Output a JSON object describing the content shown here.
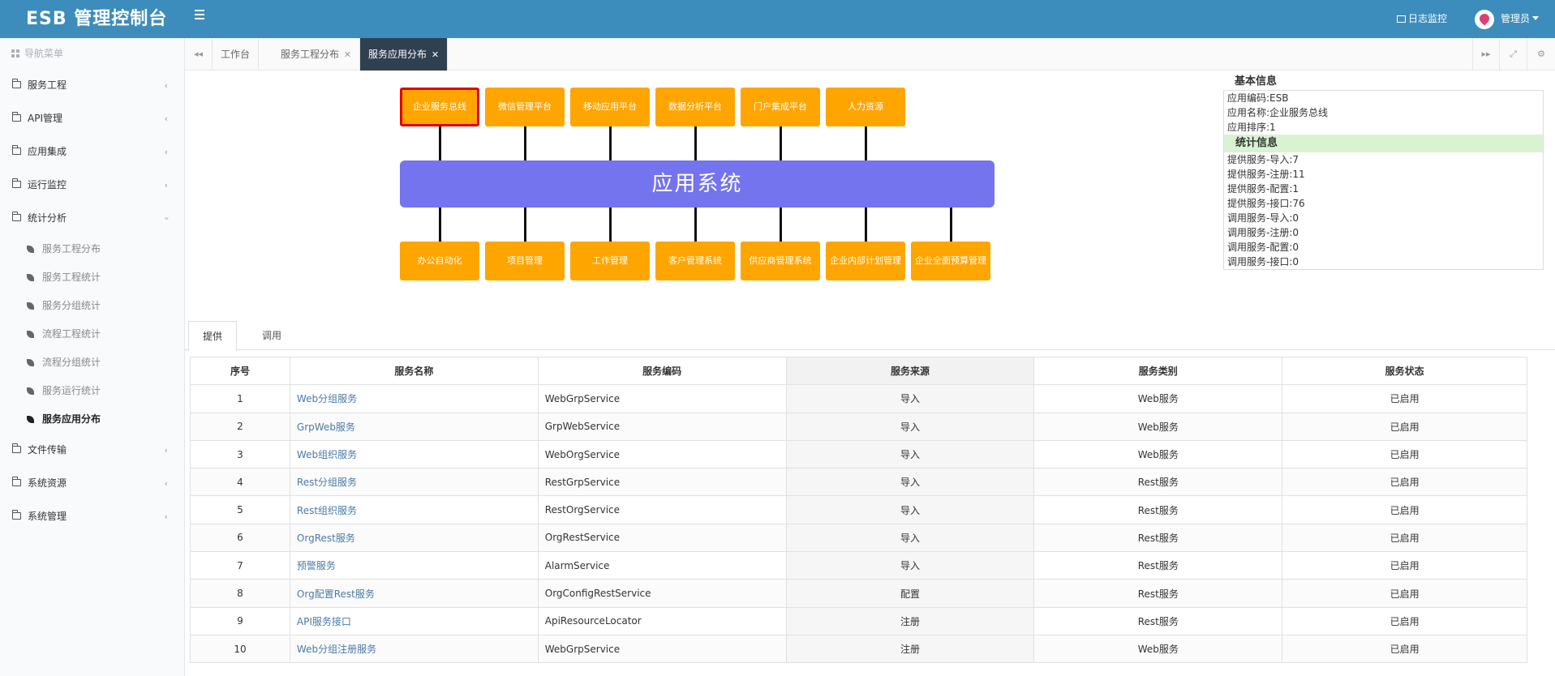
{
  "header": {
    "title": "ESB 管理控制台",
    "log_monitor": "日志监控",
    "user": "管理员"
  },
  "sidebar": {
    "nav_header": "导航菜单",
    "items": [
      {
        "label": "服务工程"
      },
      {
        "label": "API管理"
      },
      {
        "label": "应用集成"
      },
      {
        "label": "运行监控"
      },
      {
        "label": "统计分析"
      }
    ],
    "sub_items": [
      {
        "label": "服务工程分布"
      },
      {
        "label": "服务工程统计"
      },
      {
        "label": "服务分组统计"
      },
      {
        "label": "流程工程统计"
      },
      {
        "label": "流程分组统计"
      },
      {
        "label": "服务运行统计"
      },
      {
        "label": "服务应用分布"
      }
    ],
    "items_after": [
      {
        "label": "文件传输"
      },
      {
        "label": "系统资源"
      },
      {
        "label": "系统管理"
      }
    ]
  },
  "tabs": [
    {
      "label": "工作台"
    },
    {
      "label": "服务工程分布"
    },
    {
      "label": "服务应用分布"
    }
  ],
  "diagram": {
    "center_label": "应用系统",
    "top_nodes": [
      "企业服务总线",
      "微信管理平台",
      "移动应用平台",
      "数据分析平台",
      "门户集成平台",
      "人力资源"
    ],
    "bottom_nodes": [
      "办公自动化",
      "项目管理",
      "工作管理",
      "客户管理系统",
      "供应商管理系统",
      "企业内部计划管理",
      "企业全面预算管理"
    ]
  },
  "info": {
    "basic_title": "基本信息",
    "basic_rows": [
      "应用编码:ESB",
      "应用名称:企业服务总线",
      "应用排序:1"
    ],
    "stats_title": "统计信息",
    "stats_rows": [
      "提供服务-导入:7",
      "提供服务-注册:11",
      "提供服务-配置:1",
      "提供服务-接口:76",
      "调用服务-导入:0",
      "调用服务-注册:0",
      "调用服务-配置:0",
      "调用服务-接口:0"
    ]
  },
  "subtabs": [
    {
      "label": "提供"
    },
    {
      "label": "调用"
    }
  ],
  "table": {
    "headers": [
      "序号",
      "服务名称",
      "服务编码",
      "服务来源",
      "服务类别",
      "服务状态"
    ],
    "rows": [
      [
        "1",
        "Web分组服务",
        "WebGrpService",
        "导入",
        "Web服务",
        "已启用"
      ],
      [
        "2",
        "GrpWeb服务",
        "GrpWebService",
        "导入",
        "Web服务",
        "已启用"
      ],
      [
        "3",
        "Web组织服务",
        "WebOrgService",
        "导入",
        "Web服务",
        "已启用"
      ],
      [
        "4",
        "Rest分组服务",
        "RestGrpService",
        "导入",
        "Rest服务",
        "已启用"
      ],
      [
        "5",
        "Rest组织服务",
        "RestOrgService",
        "导入",
        "Rest服务",
        "已启用"
      ],
      [
        "6",
        "OrgRest服务",
        "OrgRestService",
        "导入",
        "Rest服务",
        "已启用"
      ],
      [
        "7",
        "预警服务",
        "AlarmService",
        "导入",
        "Rest服务",
        "已启用"
      ],
      [
        "8",
        "Org配置Rest服务",
        "OrgConfigRestService",
        "配置",
        "Rest服务",
        "已启用"
      ],
      [
        "9",
        "API服务接口",
        "ApiResourceLocator",
        "注册",
        "Rest服务",
        "已启用"
      ],
      [
        "10",
        "Web分组注册服务",
        "WebGrpService",
        "注册",
        "Web服务",
        "已启用"
      ]
    ]
  },
  "colors": {
    "header_bg": "#3c8dbc",
    "node_orange": "#ffa500",
    "center_purple": "#7474ef",
    "active_tab": "#2f4050"
  }
}
